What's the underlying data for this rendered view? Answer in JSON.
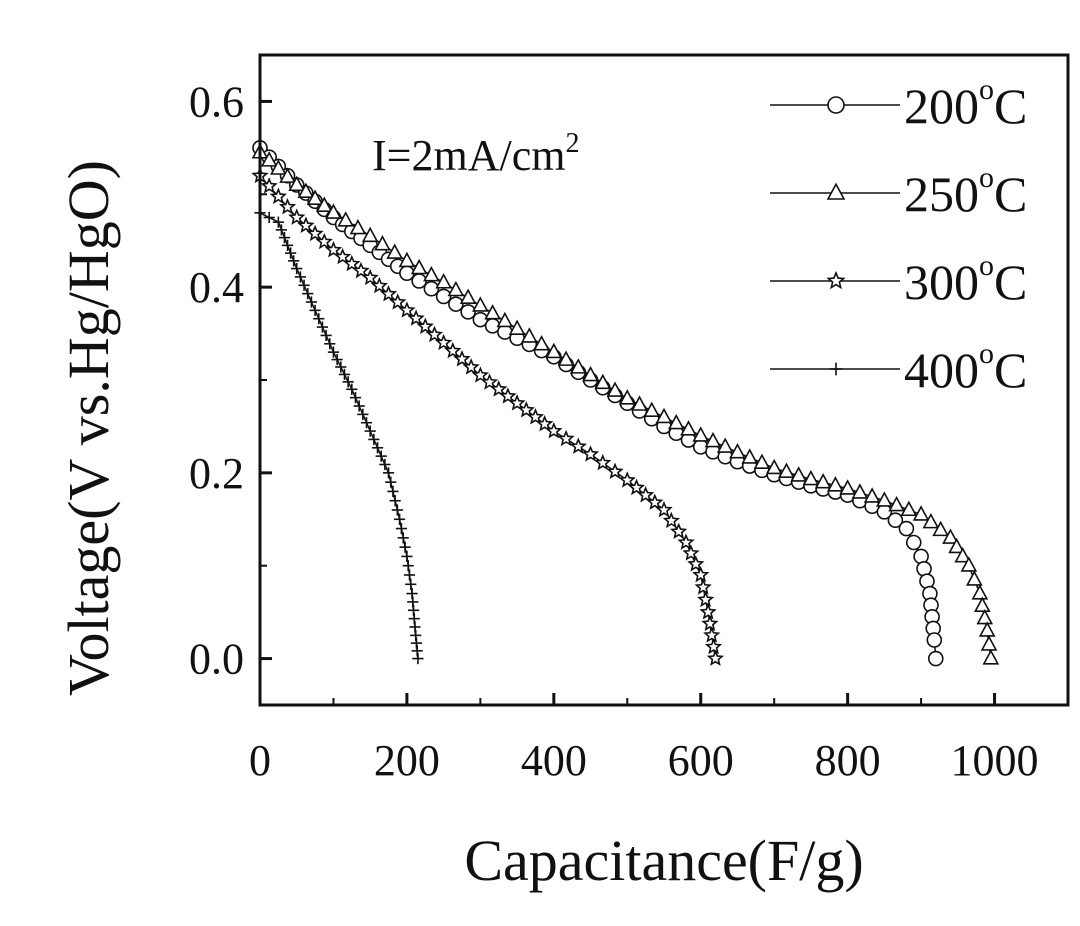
{
  "chart_data": {
    "type": "line",
    "xlabel": "Capacitance(F/g)",
    "ylabel": "Voltage(V vs.Hg/HgO)",
    "xlim": [
      0,
      1100
    ],
    "ylim": [
      -0.05,
      0.65
    ],
    "xticks": [
      0,
      200,
      400,
      600,
      800,
      1000
    ],
    "xtick_labels": [
      "0",
      "200",
      "400",
      "600",
      "800",
      "1000"
    ],
    "yticks": [
      0.0,
      0.2,
      0.4,
      0.6
    ],
    "ytick_labels": [
      "0.0",
      "0.2",
      "0.4",
      "0.6"
    ],
    "annotation": {
      "text": "I=2mA/cm",
      "superscript": "2"
    },
    "legend_position": "top-right",
    "series": [
      {
        "name": "200°C",
        "label_main": "200",
        "label_sup": "o",
        "label_tail": "C",
        "marker": "circle",
        "points": [
          [
            0,
            0.55
          ],
          [
            50,
            0.51
          ],
          [
            100,
            0.475
          ],
          [
            150,
            0.445
          ],
          [
            200,
            0.415
          ],
          [
            250,
            0.39
          ],
          [
            300,
            0.365
          ],
          [
            350,
            0.345
          ],
          [
            400,
            0.325
          ],
          [
            450,
            0.3
          ],
          [
            500,
            0.275
          ],
          [
            550,
            0.25
          ],
          [
            600,
            0.228
          ],
          [
            650,
            0.212
          ],
          [
            700,
            0.198
          ],
          [
            750,
            0.186
          ],
          [
            800,
            0.176
          ],
          [
            850,
            0.158
          ],
          [
            880,
            0.14
          ],
          [
            900,
            0.11
          ],
          [
            912,
            0.07
          ],
          [
            918,
            0.02
          ],
          [
            920,
            0.0
          ]
        ]
      },
      {
        "name": "250°C",
        "label_main": "250",
        "label_sup": "o",
        "label_tail": "C",
        "marker": "triangle",
        "points": [
          [
            0,
            0.545
          ],
          [
            50,
            0.51
          ],
          [
            100,
            0.48
          ],
          [
            150,
            0.455
          ],
          [
            200,
            0.428
          ],
          [
            250,
            0.405
          ],
          [
            300,
            0.38
          ],
          [
            350,
            0.355
          ],
          [
            400,
            0.33
          ],
          [
            450,
            0.305
          ],
          [
            500,
            0.28
          ],
          [
            550,
            0.26
          ],
          [
            600,
            0.24
          ],
          [
            650,
            0.222
          ],
          [
            700,
            0.205
          ],
          [
            750,
            0.193
          ],
          [
            800,
            0.183
          ],
          [
            850,
            0.17
          ],
          [
            900,
            0.155
          ],
          [
            940,
            0.13
          ],
          [
            965,
            0.1
          ],
          [
            980,
            0.07
          ],
          [
            990,
            0.03
          ],
          [
            995,
            0.0
          ]
        ]
      },
      {
        "name": "300°C",
        "label_main": "300",
        "label_sup": "o",
        "label_tail": "C",
        "marker": "star",
        "points": [
          [
            0,
            0.52
          ],
          [
            50,
            0.475
          ],
          [
            100,
            0.44
          ],
          [
            150,
            0.41
          ],
          [
            200,
            0.375
          ],
          [
            250,
            0.34
          ],
          [
            300,
            0.305
          ],
          [
            350,
            0.275
          ],
          [
            400,
            0.245
          ],
          [
            450,
            0.22
          ],
          [
            500,
            0.192
          ],
          [
            550,
            0.16
          ],
          [
            580,
            0.125
          ],
          [
            600,
            0.09
          ],
          [
            610,
            0.05
          ],
          [
            620,
            0.0
          ]
        ]
      },
      {
        "name": "400°C",
        "label_main": "400",
        "label_sup": "o",
        "label_tail": "C",
        "marker": "plus",
        "points": [
          [
            0,
            0.48
          ],
          [
            25,
            0.47
          ],
          [
            50,
            0.42
          ],
          [
            75,
            0.375
          ],
          [
            100,
            0.33
          ],
          [
            125,
            0.29
          ],
          [
            150,
            0.245
          ],
          [
            175,
            0.2
          ],
          [
            190,
            0.15
          ],
          [
            200,
            0.11
          ],
          [
            207,
            0.07
          ],
          [
            212,
            0.025
          ],
          [
            215,
            0.0
          ]
        ]
      }
    ]
  }
}
